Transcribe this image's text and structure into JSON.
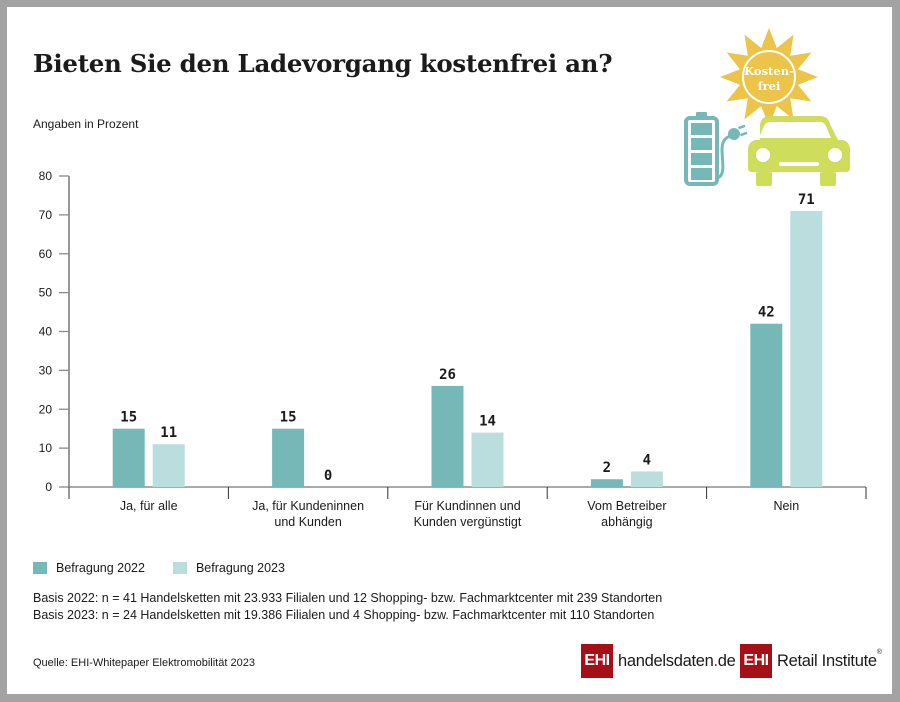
{
  "title": "Bieten Sie den Ladevorgang kostenfrei an?",
  "subtitle": "Angaben in Prozent",
  "illustration": {
    "badge_line1": "Kosten-",
    "badge_line2": "frei",
    "icons": [
      "sun-icon",
      "battery-icon",
      "plug-icon",
      "car-icon"
    ]
  },
  "colors": {
    "series_2022": "#76b8b8",
    "series_2023": "#badede",
    "sun": "#ecc44a",
    "car": "#cfdd5c",
    "battery": "#74b8b8",
    "brand_red": "#a50f15"
  },
  "chart_data": {
    "type": "bar",
    "title": "Bieten Sie den Ladevorgang kostenfrei an?",
    "subtitle": "Angaben in Prozent",
    "xlabel": "",
    "ylabel": "Angaben in Prozent",
    "ylim": [
      0,
      80
    ],
    "yticks": [
      0,
      10,
      20,
      30,
      40,
      50,
      60,
      70,
      80
    ],
    "grid": false,
    "legend_position": "bottom-left",
    "categories": [
      [
        "Ja, für alle"
      ],
      [
        "Ja, für Kundeninnen",
        "und Kunden"
      ],
      [
        "Für Kundinnen und",
        "Kunden vergünstigt"
      ],
      [
        "Vom Betreiber",
        "abhängig"
      ],
      [
        "Nein"
      ]
    ],
    "series": [
      {
        "name": "Befragung 2022",
        "values": [
          15,
          15,
          26,
          2,
          42
        ]
      },
      {
        "name": "Befragung 2023",
        "values": [
          11,
          0,
          14,
          4,
          71
        ]
      }
    ]
  },
  "legend": [
    {
      "label": "Befragung 2022"
    },
    {
      "label": "Befragung 2023"
    }
  ],
  "notes": {
    "basis_2022": "Basis 2022: n = 41 Handelsketten mit 23.933 Filialen und 12 Shopping- bzw. Fachmarktcenter mit 239 Standorten",
    "basis_2023": "Basis 2023: n = 24 Handelsketten mit 19.386 Filialen und 4 Shopping- bzw. Fachmarktcenter mit 110 Standorten",
    "source": "Quelle: EHI-Whitepaper Elektromobilität 2023"
  },
  "logos": {
    "handelsdaten": {
      "box": "EHI",
      "text_main": "handelsdaten",
      "text_dot": ".",
      "text_tld": "de"
    },
    "retail": {
      "box": "EHI",
      "text": "Retail Institute",
      "mark": "®"
    }
  }
}
